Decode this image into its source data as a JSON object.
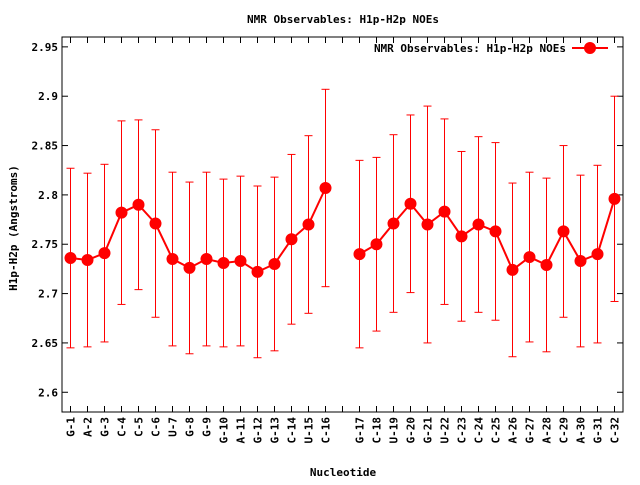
{
  "chart_data": {
    "type": "line",
    "title": "NMR Observables: H1p-H2p NOEs",
    "xlabel": "Nucleotide",
    "ylabel": "H1p-H2p (Angstroms)",
    "ylim": [
      2.58,
      2.96
    ],
    "yticks": [
      2.6,
      2.65,
      2.7,
      2.75,
      2.8,
      2.85,
      2.9,
      2.95
    ],
    "ytick_labels": [
      "2.6",
      "2.65",
      "2.7",
      "2.75",
      "2.8",
      "2.85",
      "2.9",
      "2.95"
    ],
    "grid": false,
    "legend_position": "top-right",
    "series": [
      {
        "name": "NMR Observables: H1p-H2p NOEs",
        "color": "#ff0000",
        "marker": "circle",
        "error_bars": true,
        "points": [
          {
            "x": 1,
            "label": "G-1",
            "y": 2.736,
            "err": 0.091
          },
          {
            "x": 2,
            "label": "A-2",
            "y": 2.734,
            "err": 0.088
          },
          {
            "x": 3,
            "label": "G-3",
            "y": 2.741,
            "err": 0.09
          },
          {
            "x": 4,
            "label": "C-4",
            "y": 2.782,
            "err": 0.093
          },
          {
            "x": 5,
            "label": "C-5",
            "y": 2.79,
            "err": 0.086
          },
          {
            "x": 6,
            "label": "C-6",
            "y": 2.771,
            "err": 0.095
          },
          {
            "x": 7,
            "label": "U-7",
            "y": 2.735,
            "err": 0.088
          },
          {
            "x": 8,
            "label": "G-8",
            "y": 2.726,
            "err": 0.087
          },
          {
            "x": 9,
            "label": "G-9",
            "y": 2.735,
            "err": 0.088
          },
          {
            "x": 10,
            "label": "G-10",
            "y": 2.731,
            "err": 0.085
          },
          {
            "x": 11,
            "label": "A-11",
            "y": 2.733,
            "err": 0.086
          },
          {
            "x": 12,
            "label": "G-12",
            "y": 2.722,
            "err": 0.087
          },
          {
            "x": 13,
            "label": "G-13",
            "y": 2.73,
            "err": 0.088
          },
          {
            "x": 14,
            "label": "C-14",
            "y": 2.755,
            "err": 0.086
          },
          {
            "x": 15,
            "label": "U-15",
            "y": 2.77,
            "err": 0.09
          },
          {
            "x": 16,
            "label": "C-16",
            "y": 2.807,
            "err": 0.1
          },
          {
            "x": 17,
            "label": "",
            "y": null,
            "err": null
          },
          {
            "x": 18,
            "label": "G-17",
            "y": 2.74,
            "err": 0.095
          },
          {
            "x": 19,
            "label": "C-18",
            "y": 2.75,
            "err": 0.088
          },
          {
            "x": 20,
            "label": "U-19",
            "y": 2.771,
            "err": 0.09
          },
          {
            "x": 21,
            "label": "G-20",
            "y": 2.791,
            "err": 0.09
          },
          {
            "x": 22,
            "label": "G-21",
            "y": 2.77,
            "err": 0.12
          },
          {
            "x": 23,
            "label": "U-22",
            "y": 2.783,
            "err": 0.094
          },
          {
            "x": 24,
            "label": "C-23",
            "y": 2.758,
            "err": 0.086
          },
          {
            "x": 25,
            "label": "C-24",
            "y": 2.77,
            "err": 0.089
          },
          {
            "x": 26,
            "label": "C-25",
            "y": 2.763,
            "err": 0.09
          },
          {
            "x": 27,
            "label": "A-26",
            "y": 2.724,
            "err": 0.088
          },
          {
            "x": 28,
            "label": "G-27",
            "y": 2.737,
            "err": 0.086
          },
          {
            "x": 29,
            "label": "A-28",
            "y": 2.729,
            "err": 0.088
          },
          {
            "x": 30,
            "label": "C-29",
            "y": 2.763,
            "err": 0.087
          },
          {
            "x": 31,
            "label": "A-30",
            "y": 2.733,
            "err": 0.087
          },
          {
            "x": 32,
            "label": "G-31",
            "y": 2.74,
            "err": 0.09
          },
          {
            "x": 33,
            "label": "C-32",
            "y": 2.796,
            "err": 0.104
          }
        ]
      }
    ]
  }
}
